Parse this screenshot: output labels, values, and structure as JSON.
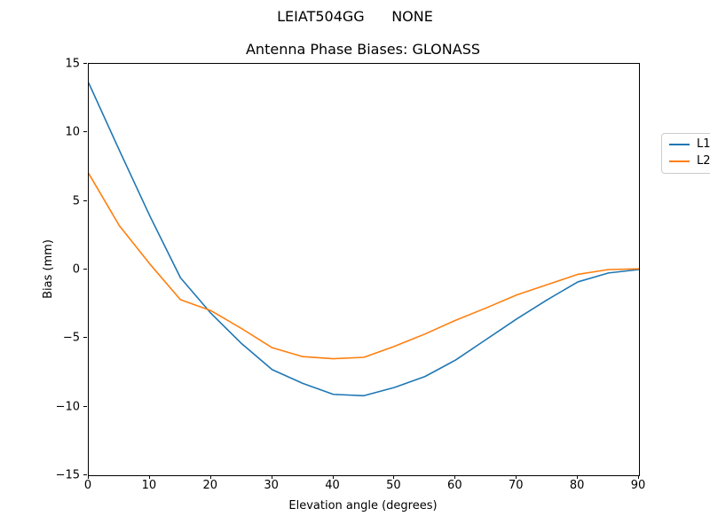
{
  "suptitle": "LEIAT504GG      NONE",
  "chart_data": {
    "type": "line",
    "title": "Antenna Phase Biases: GLONASS",
    "xlabel": "Elevation angle (degrees)",
    "ylabel": "Bias (mm)",
    "xlim": [
      0,
      90
    ],
    "ylim": [
      -15,
      15
    ],
    "xticks": [
      0,
      10,
      20,
      30,
      40,
      50,
      60,
      70,
      80,
      90
    ],
    "yticks": [
      -15,
      -10,
      -5,
      0,
      5,
      10,
      15
    ],
    "grid": false,
    "x": [
      0,
      5,
      10,
      15,
      20,
      25,
      30,
      35,
      40,
      45,
      50,
      55,
      60,
      65,
      70,
      75,
      80,
      85,
      90
    ],
    "series": [
      {
        "name": "L1",
        "color": "#1f77b4",
        "values": [
          13.6,
          8.7,
          3.9,
          -0.6,
          -3.2,
          -5.4,
          -7.3,
          -8.3,
          -9.1,
          -9.2,
          -8.6,
          -7.8,
          -6.6,
          -5.1,
          -3.6,
          -2.2,
          -0.9,
          -0.25,
          0.0
        ]
      },
      {
        "name": "L2",
        "color": "#ff7f0e",
        "values": [
          7.0,
          3.2,
          0.4,
          -2.2,
          -3.0,
          -4.3,
          -5.7,
          -6.35,
          -6.5,
          -6.4,
          -5.6,
          -4.7,
          -3.7,
          -2.8,
          -1.85,
          -1.1,
          -0.35,
          0.0,
          0.05
        ]
      }
    ],
    "legend": {
      "position": "upper right",
      "entries": [
        "L1",
        "L2"
      ]
    }
  }
}
